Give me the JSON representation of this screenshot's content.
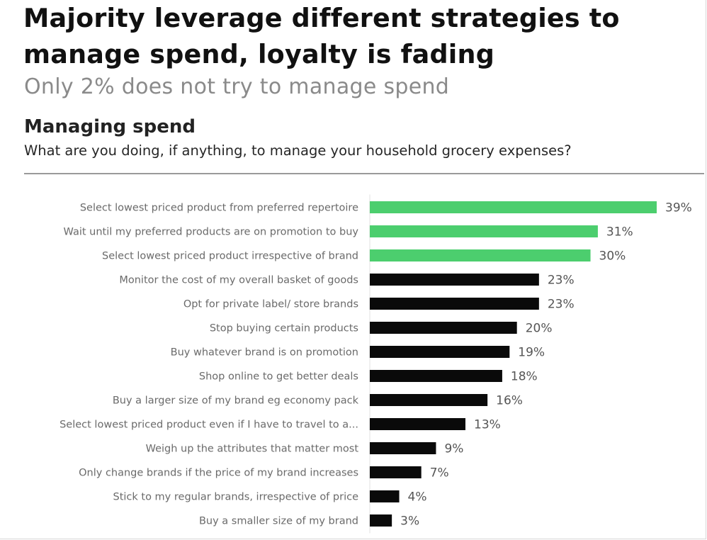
{
  "header": {
    "title": "Majority leverage different strategies to manage spend, loyalty is fading",
    "subtitle": "Only 2% does not try to manage spend"
  },
  "section": {
    "title": "Managing spend",
    "question": "What are you doing, if anything, to manage your household grocery expenses?"
  },
  "chart_data": {
    "type": "bar",
    "orientation": "horizontal",
    "categories": [
      "Select lowest priced product from preferred repertoire",
      "Wait until my preferred products are on promotion to buy",
      "Select lowest priced product irrespective of brand",
      "Monitor the cost of my overall basket of goods",
      "Opt for private label/ store brands",
      "Stop buying certain products",
      "Buy whatever brand is on promotion",
      "Shop online to get better deals",
      "Buy a larger size of my brand eg economy pack",
      "Select lowest priced product even if I have to travel to a...",
      "Weigh up the attributes that matter most",
      "Only change brands if the price of my brand increases",
      "Stick to my regular brands, irrespective of price",
      "Buy a smaller size of my brand"
    ],
    "values": [
      39,
      31,
      30,
      23,
      23,
      20,
      19,
      18,
      16,
      13,
      9,
      7,
      4,
      3
    ],
    "value_labels": [
      "39%",
      "31%",
      "30%",
      "23%",
      "23%",
      "20%",
      "19%",
      "18%",
      "16%",
      "13%",
      "9%",
      "7%",
      "4%",
      "3%"
    ],
    "unit": "%",
    "highlight_count": 3,
    "colors": {
      "highlight": "#4cce6e",
      "default": "#0a0a0a"
    },
    "xlim": [
      0,
      39
    ],
    "grid": false,
    "legend": "none"
  }
}
